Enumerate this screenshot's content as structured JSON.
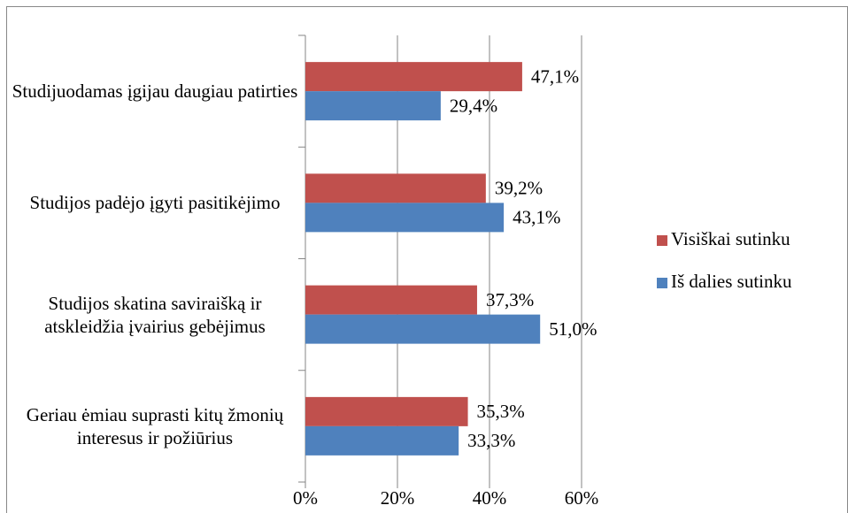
{
  "chart_data": {
    "type": "barh",
    "categories": [
      "Studijuodamas įgijau daugiau patirties",
      "Studijos padėjo įgyti pasitikėjimo",
      "Studijos skatina saviraišką ir atskleidžia įvairius gebėjimus",
      "Geriau ėmiau suprasti kitų žmonių interesus ir požiūrius"
    ],
    "series": [
      {
        "name": "Visiškai sutinku",
        "color": "#c0504d",
        "values": [
          47.1,
          39.2,
          37.3,
          35.3
        ],
        "value_labels": [
          "47,1%",
          "39,2%",
          "37,3%",
          "35,3%"
        ]
      },
      {
        "name": "Iš dalies sutinku",
        "color": "#4f81bd",
        "values": [
          29.4,
          43.1,
          51.0,
          33.3
        ],
        "value_labels": [
          "29,4%",
          "43,1%",
          "51,0%",
          "33,3%"
        ]
      }
    ],
    "xlim": [
      0,
      60
    ],
    "xticks": [
      {
        "value": 0,
        "label": "0%"
      },
      {
        "value": 20,
        "label": "20%"
      },
      {
        "value": 40,
        "label": "40%"
      },
      {
        "value": 60,
        "label": "60%"
      }
    ],
    "grid": true,
    "legend": "right"
  }
}
